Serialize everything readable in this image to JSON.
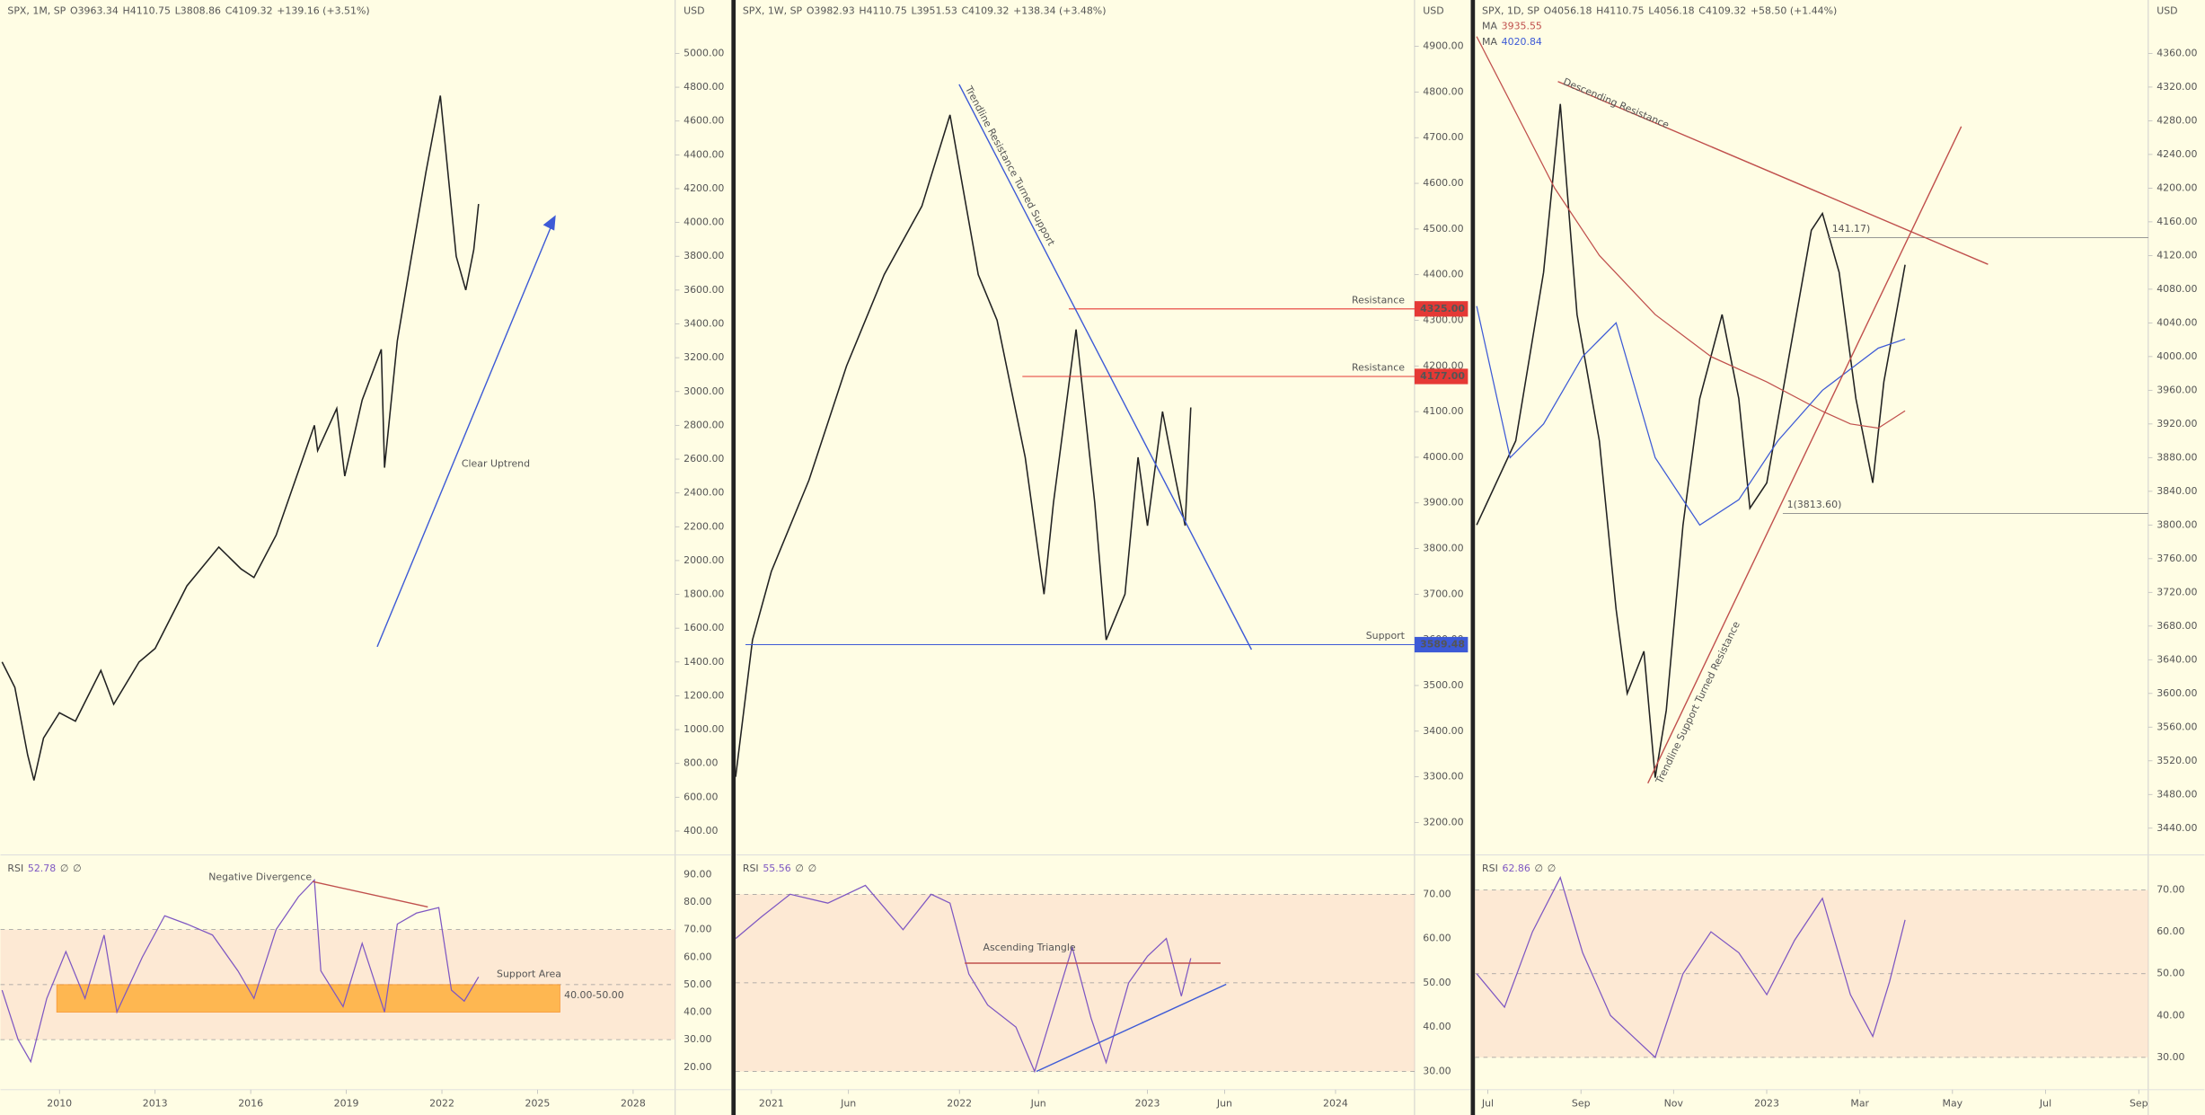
{
  "panels": [
    {
      "header": [
        "SPX, 1M, SP",
        "O3963.34",
        "H4110.75",
        "L3808.86",
        "C4109.32",
        "+139.16 (+3.51%)"
      ],
      "currency": "USD",
      "ylim": [
        259,
        5316
      ],
      "yticks": [
        {
          "value": 400,
          "label": "400.00"
        },
        {
          "value": 600,
          "label": "600.00"
        },
        {
          "value": 800,
          "label": "800.00"
        },
        {
          "value": 1000,
          "label": "1000.00"
        },
        {
          "value": 1200,
          "label": "1200.00"
        },
        {
          "value": 1400,
          "label": "1400.00"
        },
        {
          "value": 1600,
          "label": "1600.00"
        },
        {
          "value": 1800,
          "label": "1800.00"
        },
        {
          "value": 2000,
          "label": "2000.00"
        },
        {
          "value": 2200,
          "label": "2200.00"
        },
        {
          "value": 2400,
          "label": "2400.00"
        },
        {
          "value": 2600,
          "label": "2600.00"
        },
        {
          "value": 2800,
          "label": "2800.00"
        },
        {
          "value": 3000,
          "label": "3000.00"
        },
        {
          "value": 3200,
          "label": "3200.00"
        },
        {
          "value": 3400,
          "label": "3400.00"
        },
        {
          "value": 3600,
          "label": "3600.00"
        },
        {
          "value": 3800,
          "label": "3800.00"
        },
        {
          "value": 4000,
          "label": "4000.00"
        },
        {
          "value": 4200,
          "label": "4200.00"
        },
        {
          "value": 4400,
          "label": "4400.00"
        },
        {
          "value": 4600,
          "label": "4600.00"
        },
        {
          "value": 4800,
          "label": "4800.00"
        },
        {
          "value": 5000,
          "label": "5000.00"
        }
      ],
      "xlim": [
        2008.15,
        2029.32
      ],
      "xticks": [
        2010,
        2013,
        2016,
        2019,
        2022,
        2025,
        2028
      ],
      "price": {
        "x": [
          2008.2,
          2008.6,
          2009.0,
          2009.2,
          2009.5,
          2010.0,
          2010.5,
          2011.3,
          2011.7,
          2012.5,
          2013.0,
          2014.0,
          2015.0,
          2015.7,
          2016.1,
          2016.8,
          2018.0,
          2018.1,
          2018.7,
          2018.95,
          2019.5,
          2020.1,
          2020.2,
          2020.6,
          2021.0,
          2021.5,
          2021.95,
          2022.45,
          2022.75,
          2023.0,
          2023.15
        ],
        "values": [
          1400,
          1250,
          850,
          700,
          950,
          1100,
          1050,
          1350,
          1150,
          1400,
          1480,
          1850,
          2080,
          1950,
          1900,
          2150,
          2800,
          2650,
          2900,
          2500,
          2950,
          3250,
          2550,
          3300,
          3750,
          4300,
          4750,
          3800,
          3600,
          3840,
          4109
        ]
      },
      "annotations": [
        "Clear Uptrend"
      ],
      "rsi": {
        "title": "RSI",
        "reading": 52.78,
        "extra": [
          "∅",
          "∅"
        ],
        "ylim": [
          11.82,
          97.15
        ],
        "band": [
          30,
          70
        ],
        "midline": 50,
        "yticks": [
          {
            "value": 20,
            "label": "20.00"
          },
          {
            "value": 30,
            "label": "30.00"
          },
          {
            "value": 40,
            "label": "40.00"
          },
          {
            "value": 50,
            "label": "50.00"
          },
          {
            "value": 60,
            "label": "60.00"
          },
          {
            "value": 70,
            "label": "70.00"
          },
          {
            "value": 80,
            "label": "80.00"
          },
          {
            "value": 90,
            "label": "90.00"
          }
        ],
        "x": [
          2008.2,
          2008.7,
          2009.1,
          2009.6,
          2010.2,
          2010.8,
          2011.4,
          2011.8,
          2012.6,
          2013.3,
          2014.0,
          2014.8,
          2015.6,
          2016.1,
          2016.8,
          2017.5,
          2018.0,
          2018.2,
          2018.9,
          2019.5,
          2020.2,
          2020.6,
          2021.2,
          2021.9,
          2022.3,
          2022.7,
          2023.15
        ],
        "values": [
          48,
          30,
          22,
          45,
          62,
          45,
          68,
          40,
          60,
          75,
          72,
          68,
          55,
          45,
          70,
          82,
          88,
          55,
          42,
          65,
          40,
          72,
          76,
          78,
          48,
          44,
          52.78
        ],
        "annotations": [
          "Negative Divergence"
        ],
        "support_area": {
          "label": "Support Area",
          "range": [
            40,
            50
          ],
          "tag": "40.00-50.00"
        }
      }
    },
    {
      "header": [
        "SPX, 1W, SP",
        "O3982.93",
        "H4110.75",
        "L3951.53",
        "C4109.32",
        "+138.34 (+3.48%)"
      ],
      "currency": "USD",
      "ylim": [
        3129,
        5001.6
      ],
      "yticks": [
        {
          "value": 3200,
          "label": "3200.00"
        },
        {
          "value": 3300,
          "label": "3300.00"
        },
        {
          "value": 3400,
          "label": "3400.00"
        },
        {
          "value": 3500,
          "label": "3500.00"
        },
        {
          "value": 3600,
          "label": "3600.00"
        },
        {
          "value": 3700,
          "label": "3700.00"
        },
        {
          "value": 3800,
          "label": "3800.00"
        },
        {
          "value": 3900,
          "label": "3900.00"
        },
        {
          "value": 4000,
          "label": "4000.00"
        },
        {
          "value": 4100,
          "label": "4100.00"
        },
        {
          "value": 4200,
          "label": "4200.00"
        },
        {
          "value": 4300,
          "label": "4300.00"
        },
        {
          "value": 4400,
          "label": "4400.00"
        },
        {
          "value": 4500,
          "label": "4500.00"
        },
        {
          "value": 4600,
          "label": "4600.00"
        },
        {
          "value": 4700,
          "label": "4700.00"
        },
        {
          "value": 4800,
          "label": "4800.00"
        },
        {
          "value": 4900,
          "label": "4900.00"
        }
      ],
      "xlim": [
        2020.81,
        2024.42
      ],
      "xticks": [
        {
          "value": 2021,
          "label": "2021"
        },
        {
          "value": 2021.41,
          "label": "Jun"
        },
        {
          "value": 2022,
          "label": "2022"
        },
        {
          "value": 2022.42,
          "label": "Jun"
        },
        {
          "value": 2023,
          "label": "2023"
        },
        {
          "value": 2023.41,
          "label": "Jun"
        },
        {
          "value": 2024,
          "label": "2024"
        }
      ],
      "price": {
        "x": [
          2020.81,
          2020.9,
          2021.0,
          2021.2,
          2021.4,
          2021.6,
          2021.8,
          2021.95,
          2022.1,
          2022.2,
          2022.35,
          2022.45,
          2022.5,
          2022.62,
          2022.72,
          2022.78,
          2022.88,
          2022.95,
          2023.0,
          2023.08,
          2023.15,
          2023.2,
          2023.23
        ],
        "values": [
          3300,
          3600,
          3750,
          3950,
          4200,
          4400,
          4550,
          4750,
          4400,
          4300,
          4000,
          3700,
          3900,
          4280,
          3900,
          3600,
          3700,
          4000,
          3850,
          4100,
          3950,
          3850,
          4109
        ]
      },
      "annotations": [
        "Trendline Resistance Turned Support"
      ],
      "levels": [
        {
          "label": "Resistance",
          "price": {
            "value": 4325,
            "label": "4325.00"
          },
          "color": "#e53935"
        },
        {
          "label": "Resistance",
          "price": {
            "value": 4177,
            "label": "4177.00"
          },
          "color": "#e53935"
        },
        {
          "label": "Support",
          "price": {
            "value": 3589.48,
            "label": "3589.48"
          },
          "color": "#3d5ad6"
        }
      ],
      "rsi": {
        "title": "RSI",
        "reading": 55.56,
        "extra": [
          "∅",
          "∅"
        ],
        "ylim": [
          25.87,
          78.9
        ],
        "band": [
          30,
          70
        ],
        "midline": 50,
        "yticks": [
          {
            "value": 30,
            "label": "30.00"
          },
          {
            "value": 40,
            "label": "40.00"
          },
          {
            "value": 50,
            "label": "50.00"
          },
          {
            "value": 60,
            "label": "60.00"
          },
          {
            "value": 70,
            "label": "70.00"
          }
        ],
        "x": [
          2020.81,
          2020.95,
          2021.1,
          2021.3,
          2021.5,
          2021.7,
          2021.85,
          2021.95,
          2022.05,
          2022.15,
          2022.3,
          2022.4,
          2022.5,
          2022.6,
          2022.7,
          2022.78,
          2022.9,
          2023.0,
          2023.1,
          2023.18,
          2023.23
        ],
        "values": [
          60,
          65,
          70,
          68,
          72,
          62,
          70,
          68,
          52,
          45,
          40,
          30,
          44,
          58,
          42,
          32,
          50,
          56,
          60,
          47,
          55.56
        ],
        "annotations": [
          "Ascending Triangle"
        ]
      }
    },
    {
      "header": [
        "SPX, 1D, SP",
        "O4056.18",
        "H4110.75",
        "L4056.18",
        "C4109.32",
        "+58.50 (+1.44%)"
      ],
      "currency": "USD",
      "ylim": [
        3408.3,
        4423.4
      ],
      "yticks": [
        {
          "value": 3440,
          "label": "3440.00"
        },
        {
          "value": 3480,
          "label": "3480.00"
        },
        {
          "value": 3520,
          "label": "3520.00"
        },
        {
          "value": 3560,
          "label": "3560.00"
        },
        {
          "value": 3600,
          "label": "3600.00"
        },
        {
          "value": 3640,
          "label": "3640.00"
        },
        {
          "value": 3680,
          "label": "3680.00"
        },
        {
          "value": 3720,
          "label": "3720.00"
        },
        {
          "value": 3760,
          "label": "3760.00"
        },
        {
          "value": 3800,
          "label": "3800.00"
        },
        {
          "value": 3840,
          "label": "3840.00"
        },
        {
          "value": 3880,
          "label": "3880.00"
        },
        {
          "value": 3920,
          "label": "3920.00"
        },
        {
          "value": 3960,
          "label": "3960.00"
        },
        {
          "value": 4000,
          "label": "4000.00"
        },
        {
          "value": 4040,
          "label": "4040.00"
        },
        {
          "value": 4080,
          "label": "4080.00"
        },
        {
          "value": 4120,
          "label": "4120.00"
        },
        {
          "value": 4160,
          "label": "4160.00"
        },
        {
          "value": 4200,
          "label": "4200.00"
        },
        {
          "value": 4240,
          "label": "4240.00"
        },
        {
          "value": 4280,
          "label": "4280.00"
        },
        {
          "value": 4320,
          "label": "4320.00"
        },
        {
          "value": 4360,
          "label": "4360.00"
        }
      ],
      "xlim": [
        2022.477,
        2023.684
      ],
      "xticks": [
        {
          "value": 2022.5,
          "label": "Jul"
        },
        {
          "value": 2022.667,
          "label": "Sep"
        },
        {
          "value": 2022.833,
          "label": "Nov"
        },
        {
          "value": 2023.0,
          "label": "2023"
        },
        {
          "value": 2023.167,
          "label": "Mar"
        },
        {
          "value": 2023.333,
          "label": "May"
        },
        {
          "value": 2023.5,
          "label": "Jul"
        },
        {
          "value": 2023.667,
          "label": "Sep"
        }
      ],
      "price": {
        "x": [
          2022.48,
          2022.55,
          2022.6,
          2022.63,
          2022.66,
          2022.7,
          2022.73,
          2022.75,
          2022.78,
          2022.8,
          2022.82,
          2022.85,
          2022.88,
          2022.92,
          2022.95,
          2022.97,
          2023.0,
          2023.04,
          2023.08,
          2023.1,
          2023.13,
          2023.16,
          2023.19,
          2023.21,
          2023.248
        ],
        "values": [
          3800,
          3900,
          4100,
          4300,
          4050,
          3900,
          3700,
          3600,
          3650,
          3500,
          3580,
          3800,
          3950,
          4050,
          3950,
          3820,
          3850,
          4000,
          4150,
          4170,
          4100,
          3950,
          3850,
          3970,
          4109
        ]
      },
      "ma": [
        {
          "name": "MA",
          "value": 3935.55,
          "color": "#c0504d",
          "x": [
            2022.48,
            2022.55,
            2022.62,
            2022.7,
            2022.8,
            2022.9,
            2023.0,
            2023.1,
            2023.15,
            2023.2,
            2023.248
          ],
          "values": [
            4380,
            4290,
            4200,
            4120,
            4050,
            4000,
            3970,
            3935,
            3920,
            3915,
            3935.55
          ]
        },
        {
          "name": "MA",
          "value": 4020.84,
          "color": "#3d5ad6",
          "x": [
            2022.48,
            2022.54,
            2022.6,
            2022.67,
            2022.73,
            2022.8,
            2022.88,
            2022.95,
            2023.02,
            2023.1,
            2023.16,
            2023.2,
            2023.248
          ],
          "values": [
            4060,
            3880,
            3920,
            4000,
            4040,
            3880,
            3800,
            3830,
            3900,
            3960,
            3990,
            4010,
            4020.84
          ]
        }
      ],
      "fib_levels": [
        {
          "value": 4141.17,
          "label": "141.17)"
        },
        {
          "value": 3813.6,
          "label": "1(3813.60)"
        }
      ],
      "annotations": [
        "Descending Resistance",
        "Trendline Support Turned Resistance"
      ],
      "rsi": {
        "title": "RSI",
        "reading": 62.86,
        "extra": [
          "∅",
          "∅"
        ],
        "ylim": [
          22.27,
          78.4
        ],
        "band": [
          30,
          70
        ],
        "midline": 50,
        "yticks": [
          {
            "value": 30,
            "label": "30.00"
          },
          {
            "value": 40,
            "label": "40.00"
          },
          {
            "value": 50,
            "label": "50.00"
          },
          {
            "value": 60,
            "label": "60.00"
          },
          {
            "value": 70,
            "label": "70.00"
          }
        ],
        "x": [
          2022.48,
          2022.53,
          2022.58,
          2022.63,
          2022.67,
          2022.72,
          2022.76,
          2022.8,
          2022.85,
          2022.9,
          2022.95,
          2023.0,
          2023.05,
          2023.1,
          2023.15,
          2023.19,
          2023.22,
          2023.248
        ],
        "values": [
          50,
          42,
          60,
          73,
          55,
          40,
          35,
          30,
          50,
          60,
          55,
          45,
          58,
          68,
          45,
          35,
          48,
          62.86
        ]
      }
    }
  ]
}
